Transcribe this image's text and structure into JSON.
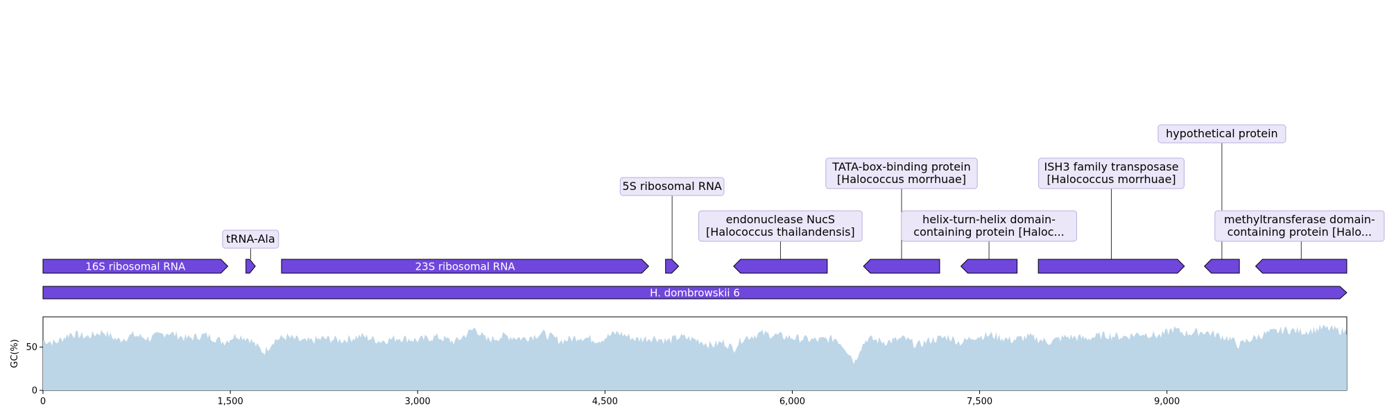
{
  "record": {
    "name": "H. dombrowskii 6",
    "length": 10440
  },
  "colors": {
    "feature_fill": "#6f47dc",
    "feature_stroke": "#000000",
    "callout_fill": "#ebe7f8",
    "callout_stroke": "#b9aedf",
    "gc_fill": "#bcd6e8",
    "axis": "#000000"
  },
  "features": [
    {
      "id": "f1",
      "label": "16S ribosomal RNA",
      "start": 0,
      "end": 1480,
      "strand": 1,
      "label_position": "inline"
    },
    {
      "id": "f2",
      "label": "tRNA-Ala",
      "start": 1625,
      "end": 1700,
      "strand": 1,
      "label_position": "callout"
    },
    {
      "id": "f3",
      "label": "23S ribosomal RNA",
      "start": 1910,
      "end": 4850,
      "strand": 1,
      "label_position": "callout-inline"
    },
    {
      "id": "f4",
      "label": "5S ribosomal RNA",
      "start": 4985,
      "end": 5090,
      "strand": 1,
      "label_position": "callout"
    },
    {
      "id": "f5",
      "label": "endonuclease NucS\n[Halococcus thailandensis]",
      "start": 5530,
      "end": 6280,
      "strand": -1,
      "label_position": "callout"
    },
    {
      "id": "f6",
      "label": "TATA-box-binding protein\n[Halococcus morrhuae]",
      "start": 6570,
      "end": 7180,
      "strand": -1,
      "label_position": "callout"
    },
    {
      "id": "f7",
      "label": "helix-turn-helix domain-\ncontaining protein [Haloc...",
      "start": 7350,
      "end": 7800,
      "strand": -1,
      "label_position": "callout"
    },
    {
      "id": "f8",
      "label": "ISH3 family transposase\n[Halococcus morrhuae]",
      "start": 7970,
      "end": 9140,
      "strand": 1,
      "label_position": "callout"
    },
    {
      "id": "f9",
      "label": "hypothetical protein",
      "start": 9300,
      "end": 9580,
      "strand": -1,
      "label_position": "callout"
    },
    {
      "id": "f10",
      "label": "methyltransferase domain-\ncontaining protein [Halo...",
      "start": 9710,
      "end": 10440,
      "strand": -1,
      "label_position": "callout"
    }
  ],
  "gc_track": {
    "ylabel": "GC(%)",
    "yticks": [
      0,
      50
    ],
    "ymax": 85,
    "xticks": [
      0,
      1500,
      3000,
      4500,
      6000,
      7500,
      9000
    ],
    "xtick_labels": [
      "0",
      "1,500",
      "3,000",
      "4,500",
      "6,000",
      "7,500",
      "9,000"
    ],
    "profile": [
      [
        0,
        58
      ],
      [
        100,
        55
      ],
      [
        220,
        66
      ],
      [
        350,
        62
      ],
      [
        480,
        68
      ],
      [
        600,
        58
      ],
      [
        720,
        64
      ],
      [
        850,
        60
      ],
      [
        1000,
        67
      ],
      [
        1150,
        60
      ],
      [
        1300,
        64
      ],
      [
        1450,
        56
      ],
      [
        1550,
        64
      ],
      [
        1650,
        60
      ],
      [
        1720,
        50
      ],
      [
        1770,
        44
      ],
      [
        1850,
        58
      ],
      [
        1950,
        62
      ],
      [
        2100,
        56
      ],
      [
        2250,
        60
      ],
      [
        2400,
        58
      ],
      [
        2550,
        63
      ],
      [
        2700,
        57
      ],
      [
        2850,
        61
      ],
      [
        3000,
        58
      ],
      [
        3150,
        62
      ],
      [
        3300,
        56
      ],
      [
        3460,
        72
      ],
      [
        3550,
        58
      ],
      [
        3700,
        63
      ],
      [
        3850,
        60
      ],
      [
        4000,
        66
      ],
      [
        4150,
        57
      ],
      [
        4300,
        62
      ],
      [
        4450,
        58
      ],
      [
        4600,
        67
      ],
      [
        4750,
        59
      ],
      [
        4900,
        61
      ],
      [
        5000,
        57
      ],
      [
        5100,
        62
      ],
      [
        5250,
        58
      ],
      [
        5350,
        52
      ],
      [
        5450,
        56
      ],
      [
        5530,
        48
      ],
      [
        5600,
        60
      ],
      [
        5750,
        66
      ],
      [
        5900,
        63
      ],
      [
        6050,
        60
      ],
      [
        6200,
        58
      ],
      [
        6350,
        60
      ],
      [
        6420,
        50
      ],
      [
        6470,
        40
      ],
      [
        6500,
        32
      ],
      [
        6540,
        48
      ],
      [
        6600,
        60
      ],
      [
        6750,
        56
      ],
      [
        6900,
        60
      ],
      [
        7000,
        52
      ],
      [
        7100,
        58
      ],
      [
        7250,
        62
      ],
      [
        7350,
        55
      ],
      [
        7450,
        62
      ],
      [
        7600,
        64
      ],
      [
        7750,
        58
      ],
      [
        7900,
        62
      ],
      [
        8050,
        56
      ],
      [
        8200,
        62
      ],
      [
        8350,
        60
      ],
      [
        8500,
        64
      ],
      [
        8650,
        62
      ],
      [
        8800,
        66
      ],
      [
        8950,
        63
      ],
      [
        9050,
        71
      ],
      [
        9150,
        66
      ],
      [
        9300,
        68
      ],
      [
        9400,
        64
      ],
      [
        9500,
        60
      ],
      [
        9580,
        52
      ],
      [
        9650,
        58
      ],
      [
        9800,
        66
      ],
      [
        9950,
        70
      ],
      [
        10100,
        68
      ],
      [
        10250,
        72
      ],
      [
        10350,
        70
      ],
      [
        10440,
        68
      ]
    ]
  }
}
